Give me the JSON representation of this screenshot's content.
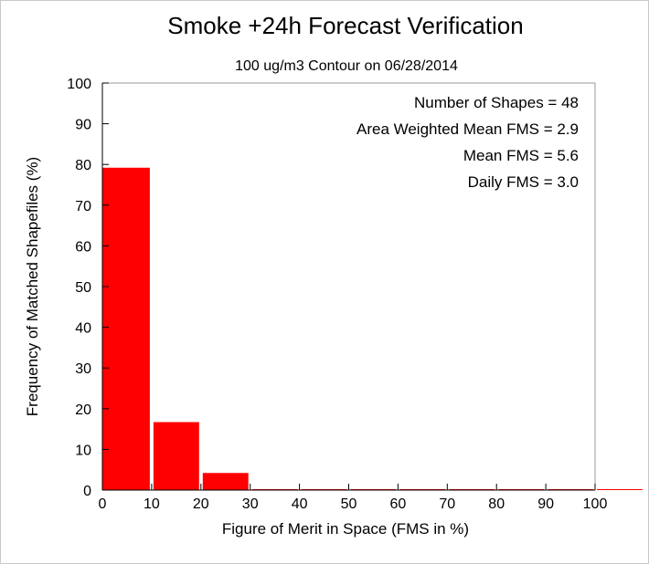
{
  "chart_data": {
    "type": "bar",
    "title": "Smoke +24h Forecast Verification",
    "subtitle": "100 ug/m3 Contour on 06/28/2014",
    "xlabel": "Figure of Merit in Space (FMS in %)",
    "ylabel": "Frequency of Matched Shapefiles (%)",
    "xlim": [
      0,
      110
    ],
    "ylim": [
      0,
      100
    ],
    "x_ticks": [
      "0",
      "10",
      "20",
      "30",
      "40",
      "50",
      "60",
      "70",
      "80",
      "90",
      "100"
    ],
    "y_ticks": [
      "0",
      "10",
      "20",
      "30",
      "40",
      "50",
      "60",
      "70",
      "80",
      "90",
      "100"
    ],
    "bins": [
      {
        "start": 0,
        "end": 10,
        "value": 79.2
      },
      {
        "start": 10,
        "end": 20,
        "value": 16.7
      },
      {
        "start": 20,
        "end": 30,
        "value": 4.2
      },
      {
        "start": 30,
        "end": 40,
        "value": 0
      },
      {
        "start": 40,
        "end": 50,
        "value": 0
      },
      {
        "start": 50,
        "end": 60,
        "value": 0
      },
      {
        "start": 60,
        "end": 70,
        "value": 0
      },
      {
        "start": 70,
        "end": 80,
        "value": 0
      },
      {
        "start": 80,
        "end": 90,
        "value": 0
      },
      {
        "start": 90,
        "end": 100,
        "value": 0
      },
      {
        "start": 100,
        "end": 110,
        "value": 0
      }
    ],
    "bar_color": "#ff0000",
    "grid": false,
    "annotations": [
      "Number of Shapes = 48",
      "Area Weighted Mean FMS = 2.9",
      "Mean FMS = 5.6",
      "Daily FMS = 3.0"
    ]
  }
}
